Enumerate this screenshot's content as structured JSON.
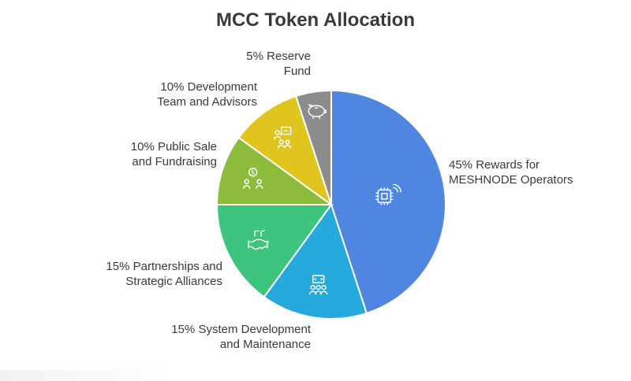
{
  "chart_data": {
    "type": "pie",
    "title": "MCC Token Allocation",
    "slices": [
      {
        "label": "45% Rewards for MESHNODE Operators",
        "value": 45,
        "color": "#4f86e0",
        "icon": "chip-signal-icon"
      },
      {
        "label": "15% System Development and Maintenance",
        "value": 15,
        "color": "#26a9dc",
        "icon": "code-team-icon"
      },
      {
        "label": "15% Partnerships and Strategic Alliances",
        "value": 15,
        "color": "#3dc47e",
        "icon": "handshake-icon"
      },
      {
        "label": "10% Public Sale and Fundraising",
        "value": 10,
        "color": "#8dbb3c",
        "icon": "people-money-icon"
      },
      {
        "label": "10% Development Team and Advisors",
        "value": 10,
        "color": "#dfc51e",
        "icon": "presentation-team-icon"
      },
      {
        "label": "5% Reserve Fund",
        "value": 5,
        "color": "#8c8c8c",
        "icon": "piggy-bank-icon"
      }
    ]
  },
  "labels": {
    "rewards": "45% Rewards for\nMESHNODE Operators",
    "system": "15% System Development\nand Maintenance",
    "partnerships": "15% Partnerships and\nStrategic Alliances",
    "public_sale": "10% Public Sale\nand Fundraising",
    "dev_team": "10% Development\nTeam and Advisors",
    "reserve": "5% Reserve\nFund"
  }
}
